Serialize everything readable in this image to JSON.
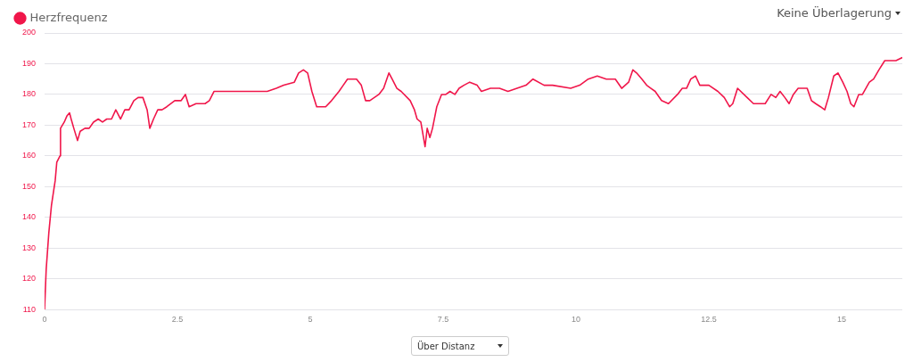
{
  "chart_data": {
    "type": "line",
    "x": [
      0,
      0.03,
      0.08,
      0.13,
      0.2,
      0.23,
      0.29,
      0.3,
      0.37,
      0.42,
      0.47,
      0.5,
      0.55,
      0.62,
      0.67,
      0.76,
      0.84,
      0.92,
      1.01,
      1.09,
      1.17,
      1.26,
      1.34,
      1.43,
      1.51,
      1.59,
      1.68,
      1.76,
      1.85,
      1.93,
      1.98,
      2.05,
      2.13,
      2.21,
      2.3,
      2.45,
      2.57,
      2.65,
      2.72,
      2.85,
      3.02,
      3.1,
      3.19,
      3.36,
      3.52,
      3.69,
      3.86,
      4.19,
      4.36,
      4.5,
      4.7,
      4.78,
      4.87,
      4.95,
      5.03,
      5.12,
      5.29,
      5.4,
      5.54,
      5.62,
      5.7,
      5.79,
      5.87,
      5.96,
      6.04,
      6.12,
      6.29,
      6.38,
      6.48,
      6.54,
      6.63,
      6.71,
      6.88,
      6.96,
      7.01,
      7.08,
      7.13,
      7.16,
      7.2,
      7.25,
      7.3,
      7.38,
      7.47,
      7.55,
      7.63,
      7.72,
      7.8,
      7.89,
      8.0,
      8.14,
      8.22,
      8.39,
      8.56,
      8.72,
      8.89,
      9.06,
      9.19,
      9.4,
      9.56,
      9.9,
      10.07,
      10.23,
      10.4,
      10.57,
      10.74,
      10.86,
      10.99,
      11.07,
      11.14,
      11.24,
      11.33,
      11.41,
      11.49,
      11.61,
      11.74,
      11.91,
      12.0,
      12.08,
      12.16,
      12.25,
      12.33,
      12.5,
      12.67,
      12.79,
      12.89,
      12.95,
      13.04,
      13.22,
      13.34,
      13.46,
      13.56,
      13.67,
      13.76,
      13.84,
      13.93,
      14.01,
      14.09,
      14.18,
      14.35,
      14.43,
      14.51,
      14.6,
      14.68,
      14.75,
      14.85,
      14.93,
      15.02,
      15.1,
      15.17,
      15.23,
      15.32,
      15.39,
      15.52,
      15.6,
      15.7,
      15.81,
      16.02,
      16.14
    ],
    "series": [
      {
        "name": "Herzfrequenz",
        "color": "#f0164a",
        "values": [
          110,
          123,
          135,
          144,
          152,
          158,
          160,
          169,
          171,
          173,
          174,
          172,
          169,
          165,
          168,
          169,
          169,
          171,
          172,
          171,
          172,
          172,
          175,
          172,
          175,
          175,
          178,
          179,
          179,
          175,
          169,
          172,
          175,
          175,
          176,
          178,
          178,
          180,
          176,
          177,
          177,
          178,
          181,
          181,
          181,
          181,
          181,
          181,
          182,
          183,
          184,
          187,
          188,
          187,
          181,
          176,
          176,
          178,
          181,
          183,
          185,
          185,
          185,
          183,
          178,
          178,
          180,
          182,
          187,
          185,
          182,
          181,
          178,
          175,
          172,
          171,
          166,
          163,
          169,
          166,
          169,
          176,
          180,
          180,
          181,
          180,
          182,
          183,
          184,
          183,
          181,
          182,
          182,
          181,
          182,
          183,
          185,
          183,
          183,
          182,
          183,
          185,
          186,
          185,
          185,
          182,
          184,
          188,
          187,
          185,
          183,
          182,
          181,
          178,
          177,
          180,
          182,
          182,
          185,
          186,
          183,
          183,
          181,
          179,
          176,
          177,
          182,
          179,
          177,
          177,
          177,
          180,
          179,
          181,
          179,
          177,
          180,
          182,
          182,
          178,
          177,
          176,
          175,
          179,
          186,
          187,
          184,
          181,
          177,
          176,
          180,
          180,
          184,
          185,
          188,
          191,
          191,
          192
        ]
      }
    ],
    "xlim": [
      0,
      16.14
    ],
    "xticks": [
      0,
      2.5,
      5,
      7.5,
      10,
      12.5,
      15
    ],
    "ylim": [
      110,
      200
    ],
    "yticks": [
      110,
      120,
      130,
      140,
      150,
      160,
      170,
      180,
      190,
      200
    ],
    "grid": "y",
    "legend": "top left",
    "marker": "none",
    "line_style": "solid",
    "annotations": [
      "Keine Überlagerung",
      "Über Distanz"
    ]
  }
}
